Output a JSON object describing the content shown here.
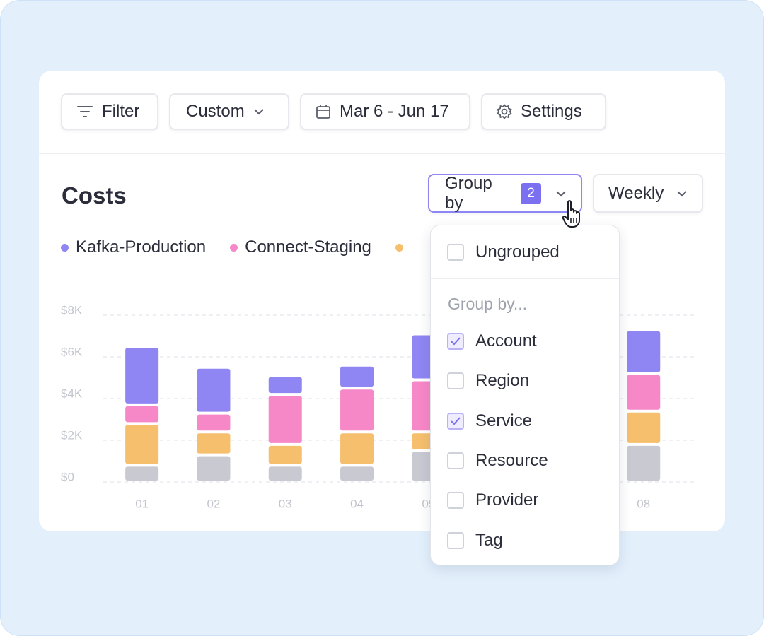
{
  "toolbar": {
    "filter": "Filter",
    "range_type": "Custom",
    "date_range": "Mar 6 - Jun 17",
    "settings": "Settings"
  },
  "costs": {
    "title": "Costs",
    "group_by": {
      "label": "Group by",
      "count": 2
    },
    "interval": "Weekly"
  },
  "chart_data": {
    "type": "bar",
    "stacked": true,
    "categories": [
      "01",
      "02",
      "03",
      "04",
      "05",
      null,
      null,
      "08"
    ],
    "series": [
      {
        "name": "Kafka-Production",
        "color": "#8f86f3",
        "values": [
          2800,
          2200,
          900,
          1100,
          2200,
          null,
          null,
          2100
        ]
      },
      {
        "name": "Connect-Staging",
        "color": "#f788c8",
        "values": [
          900,
          900,
          2400,
          2100,
          2500,
          null,
          null,
          1800
        ]
      },
      {
        "color": "#f5bf6e",
        "values": [
          2000,
          1100,
          1000,
          1600,
          900,
          null,
          null,
          1600
        ]
      },
      {
        "color": "#c8c9d1",
        "values": [
          800,
          1300,
          800,
          800,
          1500,
          null,
          null,
          1800
        ]
      }
    ],
    "ylim": [
      0,
      8000
    ],
    "yticks": [
      {
        "value": 0,
        "label": "$0"
      },
      {
        "value": 2000,
        "label": "$2K"
      },
      {
        "value": 4000,
        "label": "$4K"
      },
      {
        "value": 6000,
        "label": "$6K"
      },
      {
        "value": 8000,
        "label": "$8K"
      }
    ],
    "grid": true
  },
  "dropdown": {
    "ungrouped": {
      "label": "Ungrouped",
      "checked": false
    },
    "heading": "Group by...",
    "options": [
      {
        "label": "Account",
        "checked": true
      },
      {
        "label": "Region",
        "checked": false
      },
      {
        "label": "Service",
        "checked": true
      },
      {
        "label": "Resource",
        "checked": false
      },
      {
        "label": "Provider",
        "checked": false
      },
      {
        "label": "Tag",
        "checked": false
      }
    ]
  }
}
